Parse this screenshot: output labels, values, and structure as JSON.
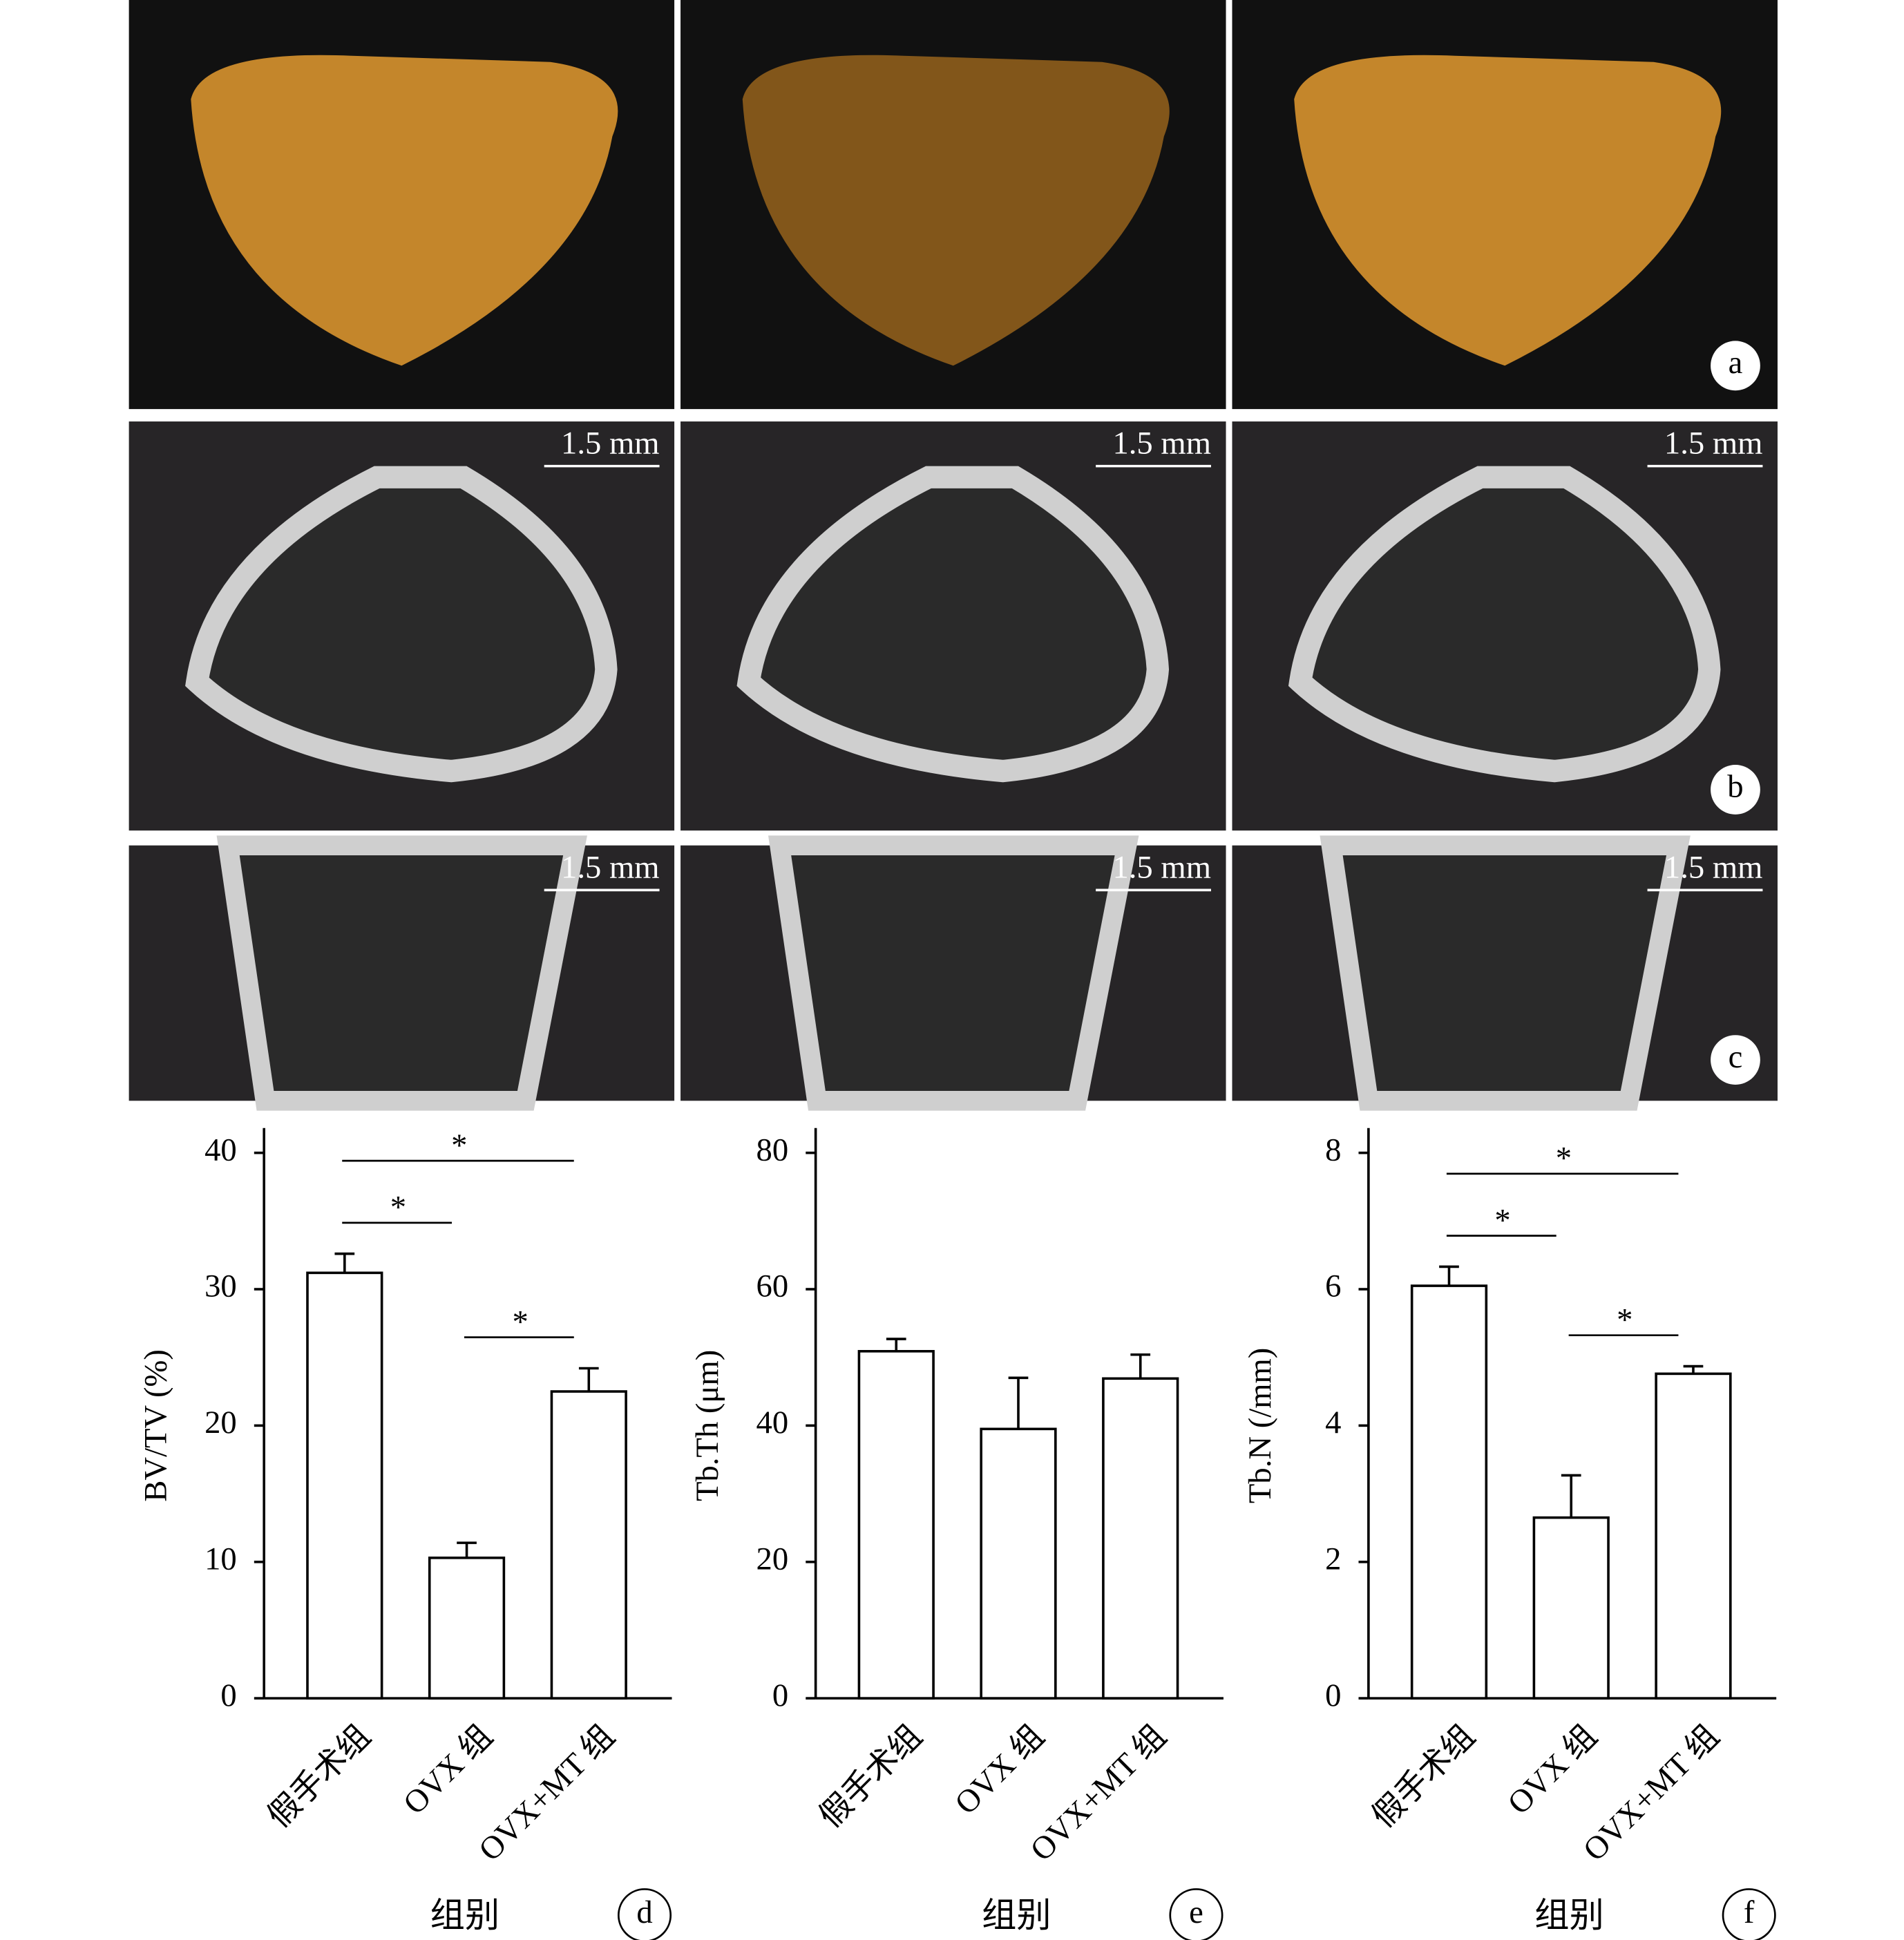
{
  "figure": {
    "scale_bar_label": "1.5 mm",
    "image_panel_labels": [
      "a",
      "b",
      "c"
    ]
  },
  "chart_data": [
    {
      "type": "bar",
      "panel_label": "d",
      "y_label": "BV/TV (%)",
      "x_label": "组别",
      "categories": [
        "假手术组",
        "OVX 组",
        "OVX+MT 组"
      ],
      "values": [
        31.2,
        10.3,
        22.5
      ],
      "errors": [
        1.4,
        1.1,
        1.7
      ],
      "color": "#ffffff",
      "ylim": [
        0,
        40
      ],
      "yticks": [
        0,
        10,
        20,
        30,
        40
      ],
      "significance": [
        {
          "from": "假手术组",
          "to": "OVX 组",
          "label": "*"
        },
        {
          "from": "假手术组",
          "to": "OVX+MT 组",
          "label": "*"
        },
        {
          "from": "OVX 组",
          "to": "OVX+MT 组",
          "label": "*"
        }
      ]
    },
    {
      "type": "bar",
      "panel_label": "e",
      "y_label": "Tb.Th (μm)",
      "x_label": "组别",
      "categories": [
        "假手术组",
        "OVX 组",
        "OVX+MT 组"
      ],
      "values": [
        50.9,
        39.5,
        46.9
      ],
      "errors": [
        1.8,
        7.5,
        3.5
      ],
      "color": "#ffffff",
      "ylim": [
        0,
        80
      ],
      "yticks": [
        0,
        20,
        40,
        60,
        80
      ],
      "significance": []
    },
    {
      "type": "bar",
      "panel_label": "f",
      "y_label": "Tb.N (/mm)",
      "x_label": "组别",
      "categories": [
        "假手术组",
        "OVX 组",
        "OVX+MT 组"
      ],
      "values": [
        6.05,
        2.65,
        4.76
      ],
      "errors": [
        0.28,
        0.62,
        0.11
      ],
      "color": "#ffffff",
      "ylim": [
        0,
        8
      ],
      "yticks": [
        0,
        2,
        4,
        6,
        8
      ],
      "significance": [
        {
          "from": "假手术组",
          "to": "OVX 组",
          "label": "*"
        },
        {
          "from": "假手术组",
          "to": "OVX+MT 组",
          "label": "*"
        },
        {
          "from": "OVX 组",
          "to": "OVX+MT 组",
          "label": "*"
        }
      ]
    }
  ]
}
